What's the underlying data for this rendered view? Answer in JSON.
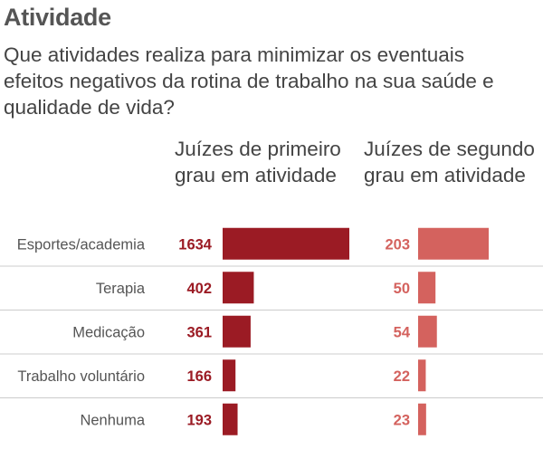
{
  "title": "Atividade",
  "subtitle": "Que atividades realiza para minimizar os eventuais efeitos negativos da rotina de trabalho na sua saúde e qualidade de vida?",
  "colors": {
    "primeiro": "#9b1b24",
    "segundo": "#d4625e",
    "divider": "#cccccc",
    "label": "#555555"
  },
  "chart_data": {
    "type": "bar",
    "categories": [
      "Esportes/academia",
      "Terapia",
      "Medicação",
      "Trabalho voluntário",
      "Nenhuma"
    ],
    "series": [
      {
        "name": "Juízes de primeiro grau em atividade",
        "values": [
          1634,
          402,
          361,
          166,
          193
        ]
      },
      {
        "name": "Juízes de segundo grau em atividade",
        "values": [
          203,
          50,
          54,
          22,
          23
        ]
      }
    ]
  }
}
